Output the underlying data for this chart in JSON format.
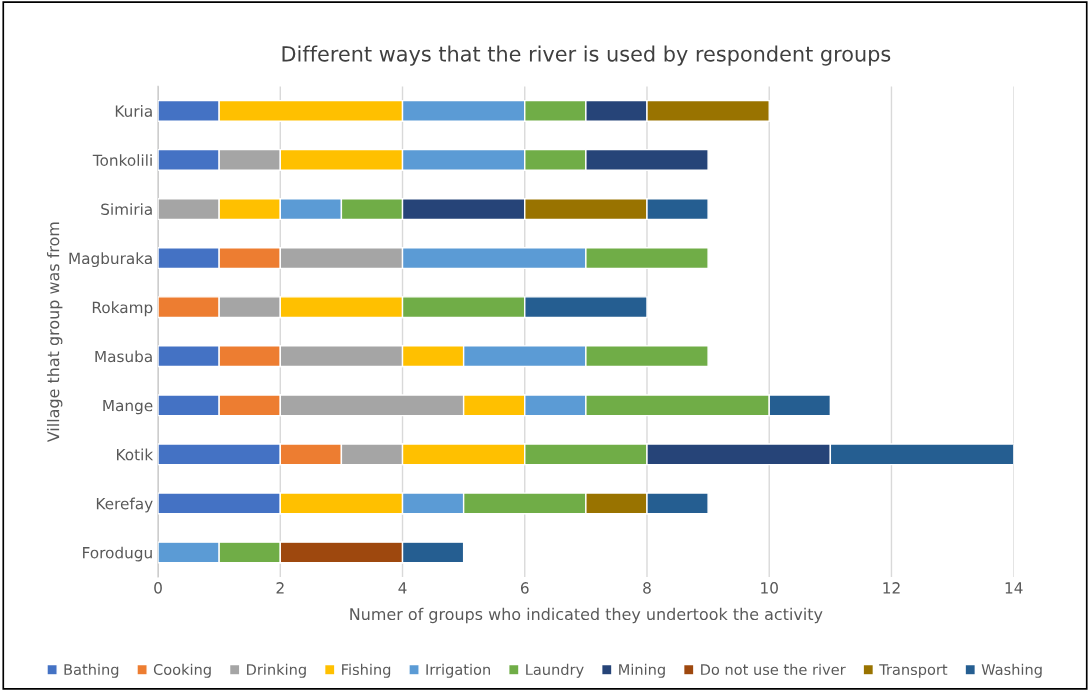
{
  "chart_data": {
    "type": "bar",
    "orientation": "horizontal",
    "stacked": true,
    "title": "Different ways that the river is used by respondent groups",
    "xlabel": "Numer of groups who indicated they undertook the activity",
    "ylabel": "Village that group was from",
    "categories": [
      "Kuria",
      "Tonkolili",
      "Simiria",
      "Magburaka",
      "Rokamp",
      "Masuba",
      "Mange",
      "Kotik",
      "Kerefay",
      "Forodugu"
    ],
    "series": [
      {
        "name": "Bathing",
        "color": "#4472c4",
        "values": [
          1,
          1,
          null,
          1,
          null,
          1,
          1,
          2,
          2,
          null
        ]
      },
      {
        "name": "Cooking",
        "color": "#ed7d31",
        "values": [
          null,
          null,
          null,
          1,
          1,
          1,
          1,
          1,
          null,
          null
        ]
      },
      {
        "name": "Drinking",
        "color": "#a5a5a5",
        "values": [
          null,
          1,
          1,
          2,
          1,
          2,
          3,
          1,
          null,
          null
        ]
      },
      {
        "name": "Fishing",
        "color": "#ffc000",
        "values": [
          3,
          2,
          1,
          null,
          2,
          1,
          1,
          2,
          2,
          null
        ]
      },
      {
        "name": "Irrigation",
        "color": "#5b9bd5",
        "values": [
          2,
          2,
          1,
          3,
          null,
          2,
          1,
          null,
          1,
          1
        ]
      },
      {
        "name": "Laundry",
        "color": "#70ad47",
        "values": [
          1,
          1,
          1,
          2,
          2,
          2,
          3,
          2,
          2,
          1
        ]
      },
      {
        "name": "Mining",
        "color": "#264478",
        "values": [
          1,
          2,
          2,
          null,
          null,
          null,
          null,
          3,
          null,
          null
        ]
      },
      {
        "name": "Do not use the river",
        "color": "#9e480e",
        "values": [
          null,
          null,
          null,
          null,
          null,
          null,
          null,
          null,
          null,
          2
        ]
      },
      {
        "name": "Transport",
        "color": "#997300",
        "values": [
          2,
          null,
          2,
          null,
          null,
          null,
          null,
          null,
          1,
          null
        ]
      },
      {
        "name": "Washing",
        "color": "#255e91",
        "values": [
          null,
          null,
          1,
          null,
          2,
          null,
          1,
          3,
          1,
          1
        ]
      }
    ],
    "xlim": [
      0,
      14
    ],
    "xticks": [
      0,
      2,
      4,
      6,
      8,
      10,
      12,
      14
    ],
    "grid": "x",
    "legend": "bottom"
  }
}
